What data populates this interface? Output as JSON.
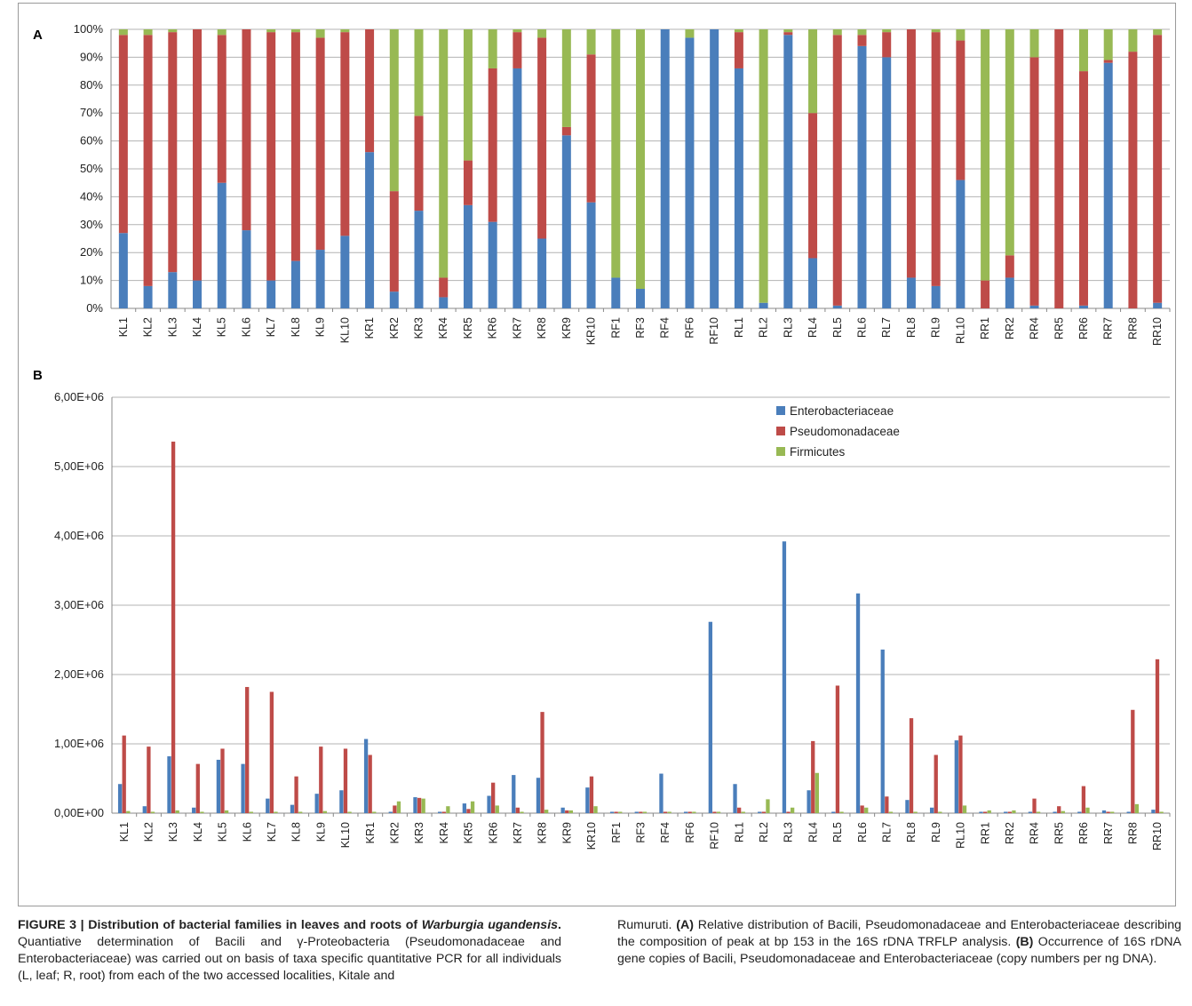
{
  "caption": {
    "figure_label": "FIGURE 3 | Distribution of bacterial families in leaves and roots of ",
    "species": "Warburgia ugandensis",
    "title_end": ".",
    "left_text": " Quantiative determination of Bacili and γ-Proteobacteria (Pseudomonadaceae and Enterobacteriaceae) was carried out on basis of taxa specific quantitative PCR for all individuals (L, leaf; R, root) from each of the two accessed localities, Kitale and",
    "right_text_1": "Rumuruti. ",
    "panel_a_label": "(A)",
    "panel_a_text": " Relative distribution of Bacili, Pseudomonadaceae and Enterobacteriaceae describing the composition of peak at bp 153 in the 16S rDNA TRFLP analysis. ",
    "panel_b_label": "(B)",
    "panel_b_text": " Occurrence of 16S rDNA gene copies of Bacili, Pseudomonadaceae and Enterobacteriaceae (copy numbers per ng DNA)."
  },
  "colors": {
    "enterobacteriaceae": "#4a7ebb",
    "pseudomonadaceae": "#be4b48",
    "firmicutes": "#98b954"
  },
  "chart_data": [
    {
      "panel": "A",
      "type": "bar",
      "stacked": "percent",
      "ylim": [
        0,
        100
      ],
      "yticks": [
        "0%",
        "10%",
        "20%",
        "30%",
        "40%",
        "50%",
        "60%",
        "70%",
        "80%",
        "90%",
        "100%"
      ],
      "grid": true,
      "categories": [
        "KL1",
        "KL2",
        "KL3",
        "KL4",
        "KL5",
        "KL6",
        "KL7",
        "KL8",
        "KL9",
        "KL10",
        "KR1",
        "KR2",
        "KR3",
        "KR4",
        "KR5",
        "KR6",
        "KR7",
        "KR8",
        "KR9",
        "KR10",
        "RF1",
        "RF3",
        "RF4",
        "RF6",
        "RF10",
        "RL1",
        "RL2",
        "RL3",
        "RL4",
        "RL5",
        "RL6",
        "RL7",
        "RL8",
        "RL9",
        "RL10",
        "RR1",
        "RR2",
        "RR4",
        "RR5",
        "RR6",
        "RR7",
        "RR8",
        "RR10"
      ],
      "series": [
        {
          "name": "Enterobacteriaceae",
          "values": [
            27,
            8,
            13,
            10,
            45,
            28,
            10,
            17,
            21,
            26,
            56,
            6,
            35,
            4,
            37,
            31,
            86,
            25,
            62,
            38,
            11,
            7,
            100,
            97,
            100,
            86,
            2,
            98,
            18,
            1,
            94,
            90,
            11,
            8,
            46,
            0,
            11,
            1,
            0,
            1,
            88,
            0,
            2
          ]
        },
        {
          "name": "Pseudomonadaceae",
          "values": [
            71,
            90,
            86,
            90,
            53,
            72,
            89,
            82,
            76,
            73,
            44,
            36,
            34,
            7,
            16,
            55,
            13,
            72,
            3,
            53,
            0,
            0,
            0,
            0,
            0,
            13,
            0,
            1,
            52,
            97,
            4,
            9,
            89,
            91,
            50,
            10,
            8,
            89,
            100,
            84,
            1,
            92,
            96
          ]
        },
        {
          "name": "Firmicutes",
          "values": [
            2,
            2,
            1,
            0,
            2,
            0,
            1,
            1,
            3,
            1,
            0,
            58,
            31,
            89,
            47,
            14,
            1,
            3,
            35,
            9,
            89,
            93,
            0,
            3,
            0,
            1,
            98,
            1,
            30,
            2,
            2,
            1,
            0,
            1,
            4,
            90,
            81,
            10,
            0,
            15,
            11,
            8,
            2
          ]
        }
      ]
    },
    {
      "panel": "B",
      "type": "bar",
      "ylim": [
        0,
        6000000
      ],
      "yticks": [
        "0,00E+00",
        "1,00E+06",
        "2,00E+06",
        "3,00E+06",
        "4,00E+06",
        "5,00E+06",
        "6,00E+06"
      ],
      "grid": true,
      "legend": "top-right",
      "categories": [
        "KL1",
        "KL2",
        "KL3",
        "KL4",
        "KL5",
        "KL6",
        "KL7",
        "KL8",
        "KL9",
        "KL10",
        "KR1",
        "KR2",
        "KR3",
        "KR4",
        "KR5",
        "KR6",
        "KR7",
        "KR8",
        "KR9",
        "KR10",
        "RF1",
        "RF3",
        "RF4",
        "RF6",
        "RF10",
        "RL1",
        "RL2",
        "RL3",
        "RL4",
        "RL5",
        "RL6",
        "RL7",
        "RL8",
        "RL9",
        "RL10",
        "RR1",
        "RR2",
        "RR4",
        "RR5",
        "RR6",
        "RR7",
        "RR8",
        "RR10"
      ],
      "series": [
        {
          "name": "Enterobacteriaceae",
          "values": [
            420000,
            100000,
            820000,
            80000,
            770000,
            710000,
            210000,
            120000,
            280000,
            330000,
            1070000,
            20000,
            230000,
            20000,
            140000,
            250000,
            550000,
            510000,
            80000,
            370000,
            20000,
            20000,
            570000,
            20000,
            2760000,
            420000,
            20000,
            3920000,
            330000,
            20000,
            3170000,
            2360000,
            190000,
            80000,
            1050000,
            20000,
            20000,
            20000,
            20000,
            20000,
            40000,
            20000,
            50000
          ]
        },
        {
          "name": "Pseudomonadaceae",
          "values": [
            1120000,
            960000,
            5360000,
            710000,
            930000,
            1820000,
            1750000,
            530000,
            960000,
            930000,
            840000,
            110000,
            220000,
            20000,
            60000,
            440000,
            80000,
            1460000,
            40000,
            530000,
            20000,
            20000,
            20000,
            20000,
            20000,
            80000,
            20000,
            20000,
            1040000,
            1840000,
            110000,
            240000,
            1370000,
            840000,
            1120000,
            20000,
            20000,
            210000,
            100000,
            390000,
            20000,
            1490000,
            2220000
          ]
        },
        {
          "name": "Firmicutes",
          "values": [
            30000,
            20000,
            40000,
            20000,
            40000,
            20000,
            20000,
            20000,
            30000,
            20000,
            20000,
            170000,
            210000,
            100000,
            170000,
            110000,
            20000,
            50000,
            40000,
            100000,
            20000,
            20000,
            20000,
            20000,
            20000,
            20000,
            200000,
            80000,
            580000,
            20000,
            80000,
            20000,
            20000,
            20000,
            110000,
            40000,
            40000,
            20000,
            30000,
            80000,
            20000,
            130000,
            20000
          ]
        }
      ]
    }
  ]
}
